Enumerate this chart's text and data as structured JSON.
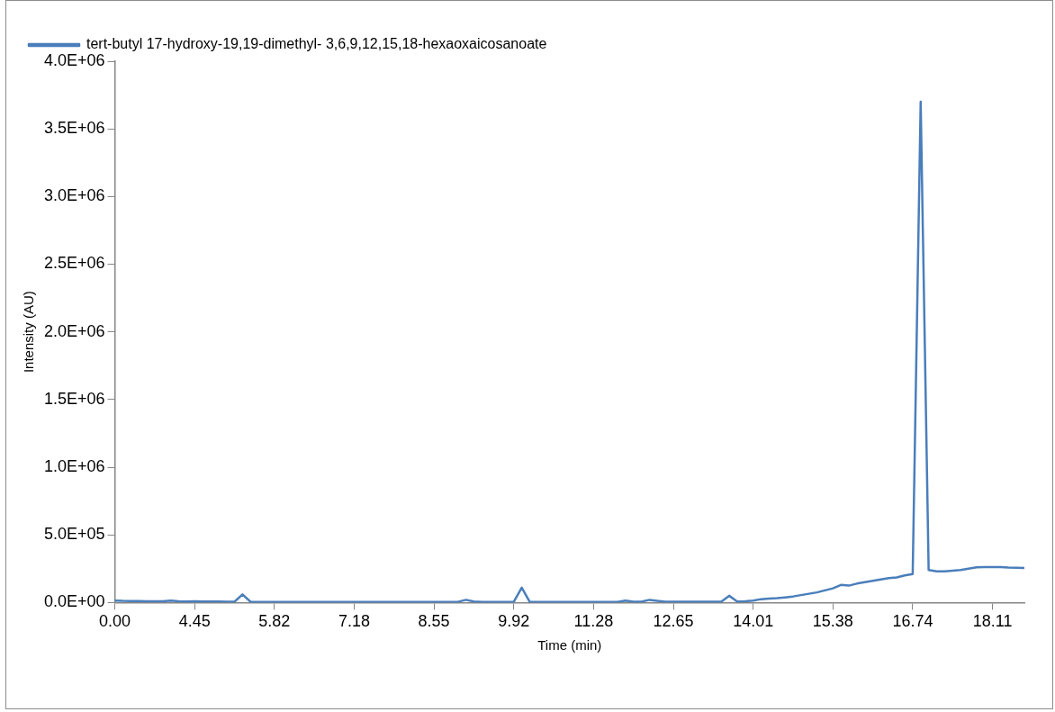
{
  "chart_data": {
    "type": "line",
    "xlabel": "Time (min)",
    "ylabel": "Intensity (AU)",
    "categories": [
      "0.00",
      null,
      null,
      null,
      null,
      null,
      null,
      null,
      null,
      null,
      "4.45",
      null,
      null,
      null,
      null,
      null,
      null,
      null,
      null,
      null,
      "5.82",
      null,
      null,
      null,
      null,
      null,
      null,
      null,
      null,
      null,
      "7.18",
      null,
      null,
      null,
      null,
      null,
      null,
      null,
      null,
      null,
      "8.55",
      null,
      null,
      null,
      null,
      null,
      null,
      null,
      null,
      null,
      "9.92",
      null,
      null,
      null,
      null,
      null,
      null,
      null,
      null,
      null,
      "11.28",
      null,
      null,
      null,
      null,
      null,
      null,
      null,
      null,
      null,
      "12.65",
      null,
      null,
      null,
      null,
      null,
      null,
      null,
      null,
      null,
      "14.01",
      null,
      null,
      null,
      null,
      null,
      null,
      null,
      null,
      null,
      "15.38",
      null,
      null,
      null,
      null,
      null,
      null,
      null,
      null,
      null,
      "16.74",
      null,
      null,
      null,
      null,
      null,
      null,
      null,
      null,
      null,
      "18.11",
      null,
      null,
      null,
      null
    ],
    "series": [
      {
        "name": "tert-butyl 17-hydroxy-19,19-dimethyl- 3,6,9,12,15,18-hexaoxaicosanoate",
        "color": "#4a7ebb",
        "values": [
          15000,
          12000,
          11000,
          11000,
          10000,
          10000,
          9000,
          14000,
          9000,
          8000,
          9000,
          8000,
          7000,
          7000,
          6000,
          6000,
          60000,
          6000,
          5000,
          5000,
          5000,
          5000,
          5000,
          5000,
          5000,
          5000,
          5000,
          5000,
          5000,
          5000,
          5000,
          5000,
          5000,
          5000,
          5000,
          5000,
          5000,
          5000,
          5000,
          5000,
          5000,
          5000,
          5000,
          5000,
          20000,
          8000,
          5000,
          5000,
          5000,
          5000,
          5000,
          110000,
          5000,
          5000,
          5000,
          5000,
          5000,
          5000,
          5000,
          5000,
          5000,
          5000,
          5000,
          5000,
          15000,
          6000,
          6000,
          20000,
          12000,
          6000,
          6000,
          6000,
          6000,
          6000,
          6000,
          6000,
          6000,
          50000,
          8000,
          10000,
          15000,
          25000,
          30000,
          32000,
          38000,
          45000,
          55000,
          65000,
          75000,
          90000,
          105000,
          130000,
          125000,
          140000,
          150000,
          160000,
          170000,
          180000,
          185000,
          200000,
          210000,
          3700000,
          240000,
          230000,
          230000,
          235000,
          240000,
          250000,
          260000,
          262000,
          262000,
          262000,
          258000,
          257000,
          255000
        ]
      }
    ],
    "ylim": [
      0,
      4000000
    ],
    "yticks": [
      {
        "value": 0,
        "label": "0.0E+00"
      },
      {
        "value": 500000,
        "label": "5.0E+05"
      },
      {
        "value": 1000000,
        "label": "1.0E+06"
      },
      {
        "value": 1500000,
        "label": "1.5E+06"
      },
      {
        "value": 2000000,
        "label": "2.0E+06"
      },
      {
        "value": 2500000,
        "label": "2.5E+06"
      },
      {
        "value": 3000000,
        "label": "3.0E+06"
      },
      {
        "value": 3500000,
        "label": "3.5E+06"
      },
      {
        "value": 4000000,
        "label": "4.0E+06"
      }
    ],
    "grid": false,
    "legend": "top left"
  }
}
